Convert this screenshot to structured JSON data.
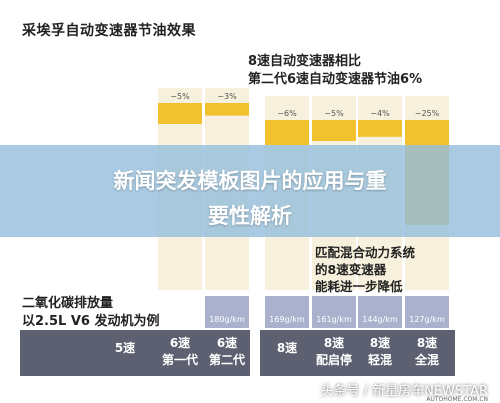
{
  "chart_data": {
    "type": "bar",
    "title": "采埃孚自动变速器节油效果",
    "annotation_compare": [
      "8速自动变速器相比",
      "第二代6速自动变速器节油6%"
    ],
    "annotation_hybrid": [
      "匹配混合动力系统",
      "的8速变速器",
      "能耗进一步降低"
    ],
    "co2_label": [
      "二氧化碳排放量",
      "以2.5L V6 发动机为例"
    ],
    "categories": [
      [
        "5速"
      ],
      [
        "6速",
        "第一代"
      ],
      [
        "6速",
        "第二代"
      ],
      [
        "8速"
      ],
      [
        "8速",
        "配启停"
      ],
      [
        "8速",
        "轻混"
      ],
      [
        "8速",
        "全混"
      ]
    ],
    "savings_labels": [
      "",
      "−5%",
      "−3%",
      "−6%",
      "−5%",
      "−4%",
      "−25%"
    ],
    "savings_values": [
      0,
      5,
      3,
      6,
      5,
      4,
      25
    ],
    "co2_labels": [
      "",
      "",
      "180g/km",
      "169g/km",
      "161g/km",
      "144g/km",
      "127g/km"
    ],
    "co2_values": [
      null,
      null,
      180,
      169,
      161,
      144,
      127
    ],
    "colors": {
      "fuel_saving": "#f2c12e",
      "co2": "#a9b1cc",
      "base": "#5d6070",
      "column": "#f7f0dc"
    }
  },
  "banner": {
    "line1": "新闻突发模板图片的应用与重",
    "line2": "要性解析"
  },
  "watermark": {
    "main": "头条号 / 新星房车NEWSTAR",
    "small": "AUTOHOME.COM.CN"
  }
}
